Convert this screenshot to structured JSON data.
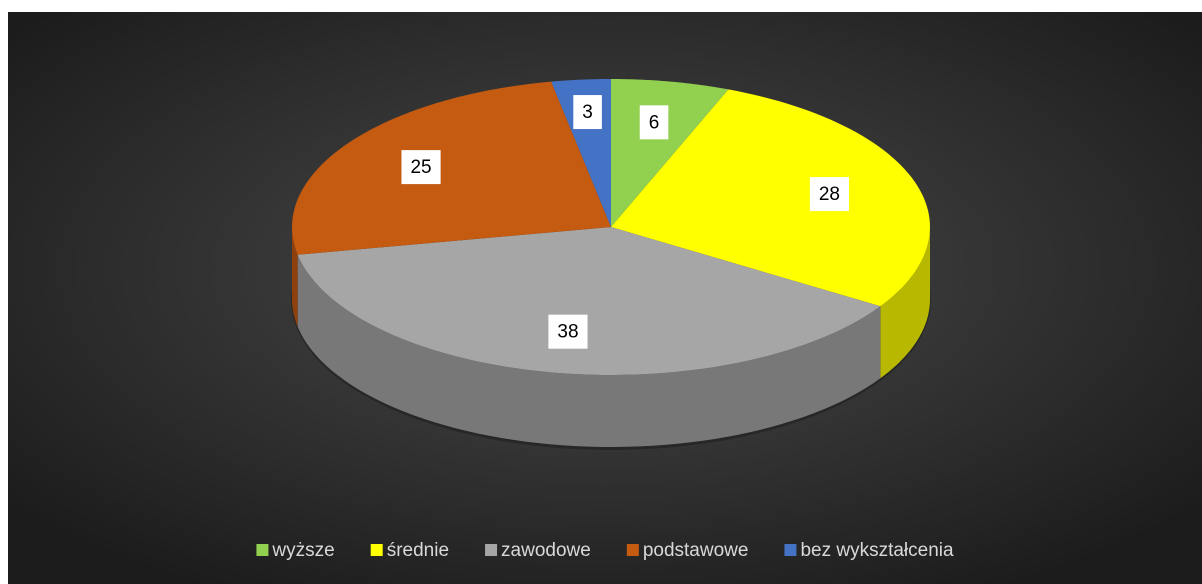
{
  "chart_data": {
    "type": "pie",
    "categories": [
      "wyższe",
      "średnie",
      "zawodowe",
      "podstawowe",
      "bez wykształcenia"
    ],
    "values": [
      6,
      28,
      38,
      25,
      3
    ],
    "colors": [
      "#92d050",
      "#ffff00",
      "#a6a6a6",
      "#c55a11",
      "#4472c4"
    ],
    "legend": "bottom"
  }
}
